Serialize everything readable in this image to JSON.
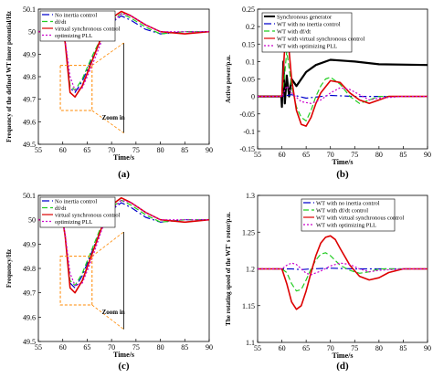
{
  "figure": {
    "panels": [
      {
        "id": "a",
        "caption": "(a)",
        "chart_type": "line",
        "xlabel": "Time/s",
        "ylabel": "Frequency of the defined WT inner potential/Hz",
        "xlim": [
          55,
          90
        ],
        "ylim": [
          49.5,
          50.1
        ],
        "xticks": [
          "55",
          "60",
          "65",
          "70",
          "75",
          "80",
          "85",
          "90"
        ],
        "yticks": [
          "49.5",
          "49.6",
          "49.7",
          "49.8",
          "49.9",
          "50",
          "50.1"
        ],
        "annotation": "Zoom in",
        "legend": [
          "No inertia control",
          "df/dt",
          "virtual synchronous control",
          "optimizing PLL"
        ]
      },
      {
        "id": "b",
        "caption": "(b)",
        "chart_type": "line",
        "xlabel": "Time/s",
        "ylabel": "Active power/p.u.",
        "xlim": [
          55,
          90
        ],
        "ylim": [
          -0.15,
          0.25
        ],
        "xticks": [
          "55",
          "60",
          "65",
          "70",
          "75",
          "80",
          "85",
          "90"
        ],
        "yticks": [
          "-0.15",
          "-0.1",
          "-0.05",
          "0",
          "0.05",
          "0.1",
          "0.15",
          "0.2",
          "0.25"
        ],
        "legend": [
          "Synchronous generator",
          "WT with no inertia control",
          "WT with df/dt",
          "WT with virtual synchronous control",
          "WT with optimizing PLL"
        ]
      },
      {
        "id": "c",
        "caption": "(c)",
        "chart_type": "line",
        "xlabel": "Time/s",
        "ylabel": "Frequency/Hz",
        "xlim": [
          55,
          90
        ],
        "ylim": [
          49.5,
          50.1
        ],
        "xticks": [
          "55",
          "60",
          "65",
          "70",
          "75",
          "80",
          "85",
          "90"
        ],
        "yticks": [
          "49.5",
          "49.6",
          "49.7",
          "49.8",
          "49.9",
          "50",
          "50.1"
        ],
        "annotation": "Zoom in",
        "legend": [
          "No inertia control",
          "df/dt",
          "virtual synchronous control",
          "optimizing PLL"
        ]
      },
      {
        "id": "d",
        "caption": "(d)",
        "chart_type": "line",
        "xlabel": "Time/s",
        "ylabel": "The rotating speed of the WT' s rotor/p.u.",
        "xlim": [
          55,
          90
        ],
        "ylim": [
          1.1,
          1.3
        ],
        "xticks": [
          "55",
          "60",
          "65",
          "70",
          "75",
          "80",
          "85",
          "90"
        ],
        "yticks": [
          "1.1",
          "1.15",
          "1.2",
          "1.25",
          "1.3"
        ],
        "legend": [
          "WT with no inertia control",
          "WT with df/dt control",
          "WT with virtual synchronous control",
          "WT with optimizing PLL"
        ]
      }
    ],
    "series_style": [
      {
        "color": "#0000cc",
        "dash": "8,3,2,3"
      },
      {
        "color": "#22cc22",
        "dash": "6,3"
      },
      {
        "color": "#dd0000",
        "dash": ""
      },
      {
        "color": "#cc00cc",
        "dash": "2,2"
      }
    ],
    "black_color": "#000000",
    "zoom_box_color": "#ff8800"
  },
  "chart_data": [
    {
      "type": "line",
      "x_unit": "s",
      "series_names": [
        "No inertia control",
        "df/dt",
        "virtual synchronous control",
        "optimizing PLL"
      ],
      "series": [
        {
          "name": "No inertia control",
          "x": [
            55,
            60,
            60.5,
            61.5,
            62.5,
            64,
            66,
            68,
            70,
            72,
            74,
            77,
            80,
            85,
            90
          ],
          "y": [
            50,
            50,
            49.95,
            49.75,
            49.73,
            49.78,
            49.88,
            49.97,
            50.04,
            50.07,
            50.05,
            50.01,
            49.99,
            50,
            50
          ]
        },
        {
          "name": "df/dt",
          "x": [
            55,
            60,
            60.5,
            61.5,
            62.5,
            64,
            66,
            68,
            70,
            72,
            74,
            77,
            80,
            85,
            90
          ],
          "y": [
            50,
            50,
            49.95,
            49.76,
            49.74,
            49.79,
            49.89,
            49.98,
            50.05,
            50.08,
            50.06,
            50.02,
            49.99,
            50,
            50
          ]
        },
        {
          "name": "virtual synchronous control",
          "x": [
            55,
            60,
            60.5,
            61.5,
            62.5,
            64,
            66,
            68,
            70,
            72,
            74,
            77,
            80,
            85,
            90
          ],
          "y": [
            50,
            50,
            49.95,
            49.73,
            49.71,
            49.76,
            49.87,
            49.98,
            50.06,
            50.09,
            50.07,
            50.03,
            50,
            49.99,
            50
          ]
        },
        {
          "name": "optimizing PLL",
          "x": [
            55,
            60,
            60.5,
            61.5,
            62.5,
            64,
            66,
            68,
            70,
            72,
            74,
            77,
            80,
            85,
            90
          ],
          "y": [
            50,
            50,
            49.96,
            49.8,
            49.74,
            49.75,
            49.85,
            49.96,
            50.04,
            50.08,
            50.07,
            50.03,
            50,
            50,
            50
          ]
        }
      ]
    },
    {
      "type": "line",
      "x_unit": "s",
      "series_names": [
        "Synchronous generator",
        "WT with no inertia control",
        "WT with df/dt",
        "WT with virtual synchronous control",
        "WT with optimizing PLL"
      ],
      "series": [
        {
          "name": "Synchronous generator",
          "x": [
            55,
            59.9,
            60,
            60.3,
            60.6,
            61,
            61.5,
            62,
            63,
            65,
            67,
            70,
            75,
            80,
            90
          ],
          "y": [
            0,
            0,
            -0.03,
            0.1,
            -0.02,
            0.06,
            0,
            0.05,
            0.03,
            0.07,
            0.09,
            0.105,
            0.1,
            0.092,
            0.09
          ]
        },
        {
          "name": "WT with no inertia control",
          "x": [
            55,
            60,
            62,
            65,
            70,
            75,
            80,
            90
          ],
          "y": [
            0,
            0,
            0.005,
            -0.005,
            0.003,
            0,
            0,
            0
          ]
        },
        {
          "name": "WT with df/dt",
          "x": [
            55,
            60,
            60.5,
            61,
            62,
            63,
            64,
            65,
            66,
            67,
            68,
            69,
            70,
            72,
            74,
            76,
            78,
            80,
            85,
            90
          ],
          "y": [
            0,
            0,
            0.05,
            0.13,
            0.03,
            -0.03,
            -0.06,
            -0.07,
            -0.04,
            0,
            0.03,
            0.05,
            0.055,
            0.035,
            0,
            -0.02,
            -0.01,
            0,
            0,
            0
          ]
        },
        {
          "name": "WT with virtual synchronous control",
          "x": [
            55,
            60,
            60.5,
            61,
            61.5,
            62,
            63,
            64,
            65,
            66,
            67,
            68,
            70,
            72,
            74,
            76,
            78,
            80,
            82,
            85,
            90
          ],
          "y": [
            0,
            0,
            0.12,
            0.19,
            0.13,
            0.05,
            -0.04,
            -0.08,
            -0.085,
            -0.06,
            -0.02,
            0.01,
            0.045,
            0.04,
            0.01,
            -0.01,
            -0.02,
            -0.01,
            0,
            0,
            0
          ]
        },
        {
          "name": "WT with optimizing PLL",
          "x": [
            55,
            60,
            61,
            62,
            64,
            66,
            68,
            70,
            72,
            74,
            76,
            78,
            80,
            85,
            90
          ],
          "y": [
            0,
            0,
            0.03,
            0.01,
            -0.015,
            -0.02,
            -0.01,
            0.01,
            0.025,
            0.02,
            0.005,
            -0.01,
            -0.005,
            0,
            0
          ]
        }
      ]
    },
    {
      "type": "line",
      "x_unit": "s",
      "series_names": [
        "No inertia control",
        "df/dt",
        "virtual synchronous control",
        "optimizing PLL"
      ],
      "series": [
        {
          "name": "No inertia control",
          "x": [
            55,
            60,
            60.5,
            61.5,
            62.5,
            64,
            66,
            68,
            70,
            72,
            74,
            77,
            80,
            85,
            90
          ],
          "y": [
            50,
            50,
            49.93,
            49.74,
            49.72,
            49.77,
            49.87,
            49.97,
            50.04,
            50.07,
            50.05,
            50.01,
            49.99,
            50,
            50
          ]
        },
        {
          "name": "df/dt",
          "x": [
            55,
            60,
            60.5,
            61.5,
            62.5,
            64,
            66,
            68,
            70,
            72,
            74,
            77,
            80,
            85,
            90
          ],
          "y": [
            50,
            50,
            49.93,
            49.75,
            49.73,
            49.78,
            49.88,
            49.98,
            50.05,
            50.08,
            50.06,
            50.02,
            49.99,
            50,
            50
          ]
        },
        {
          "name": "virtual synchronous control",
          "x": [
            55,
            60,
            60.5,
            61.5,
            62.5,
            64,
            66,
            68,
            70,
            72,
            74,
            77,
            80,
            85,
            90
          ],
          "y": [
            50,
            50,
            49.93,
            49.72,
            49.7,
            49.75,
            49.86,
            49.97,
            50.06,
            50.09,
            50.07,
            50.03,
            50,
            49.99,
            50
          ]
        },
        {
          "name": "optimizing PLL",
          "x": [
            55,
            60,
            60.5,
            61.5,
            62.5,
            64,
            66,
            68,
            70,
            72,
            74,
            77,
            80,
            85,
            90
          ],
          "y": [
            50,
            50,
            49.94,
            49.78,
            49.73,
            49.74,
            49.84,
            49.96,
            50.04,
            50.08,
            50.07,
            50.03,
            50,
            50,
            50
          ]
        }
      ]
    },
    {
      "type": "line",
      "x_unit": "s",
      "series_names": [
        "WT with no inertia control",
        "WT with df/dt control",
        "WT with virtual synchronous control",
        "WT with optimizing PLL"
      ],
      "series": [
        {
          "name": "WT with no inertia control",
          "x": [
            55,
            60,
            62,
            64,
            66,
            70,
            75,
            80,
            90
          ],
          "y": [
            1.2,
            1.2,
            1.2,
            1.199,
            1.2,
            1.201,
            1.2,
            1.2,
            1.2
          ]
        },
        {
          "name": "WT with df/dt control",
          "x": [
            55,
            60,
            61,
            62,
            63,
            64,
            65,
            66,
            67,
            68,
            69,
            70,
            72,
            74,
            76,
            78,
            80,
            85,
            90
          ],
          "y": [
            1.2,
            1.2,
            1.195,
            1.18,
            1.17,
            1.172,
            1.185,
            1.2,
            1.212,
            1.22,
            1.222,
            1.218,
            1.205,
            1.198,
            1.194,
            1.196,
            1.2,
            1.2,
            1.2
          ]
        },
        {
          "name": "WT with virtual synchronous control",
          "x": [
            55,
            60,
            61,
            62,
            63,
            64,
            65,
            66,
            67,
            68,
            69,
            70,
            71,
            72,
            74,
            76,
            78,
            80,
            82,
            85,
            90
          ],
          "y": [
            1.2,
            1.2,
            1.18,
            1.155,
            1.145,
            1.15,
            1.17,
            1.195,
            1.218,
            1.235,
            1.243,
            1.245,
            1.24,
            1.228,
            1.205,
            1.19,
            1.185,
            1.188,
            1.195,
            1.2,
            1.2
          ]
        },
        {
          "name": "WT with optimizing PLL",
          "x": [
            55,
            60,
            61,
            62,
            63,
            64,
            65,
            66,
            68,
            70,
            72,
            74,
            76,
            78,
            80,
            85,
            90
          ],
          "y": [
            1.2,
            1.2,
            1.205,
            1.208,
            1.206,
            1.2,
            1.194,
            1.192,
            1.197,
            1.204,
            1.208,
            1.206,
            1.2,
            1.196,
            1.198,
            1.2,
            1.2
          ]
        }
      ]
    }
  ]
}
